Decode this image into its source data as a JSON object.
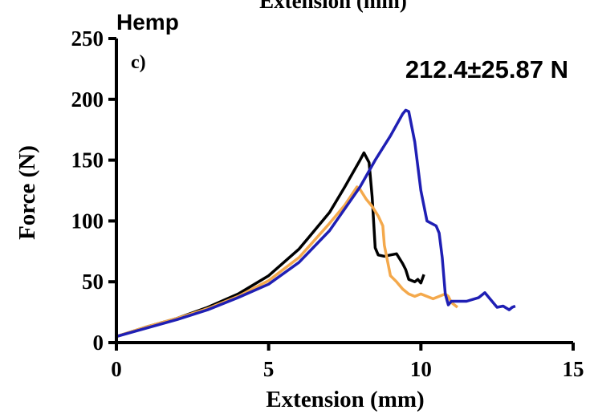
{
  "chart_data": {
    "type": "line",
    "top_label": "Extension (mm)",
    "title": "Hemp",
    "panel_label": "c)",
    "annotation": "212.4±25.87 N",
    "xlabel": "Extension (mm)",
    "ylabel": "Force (N)",
    "xlim": [
      0,
      15
    ],
    "ylim": [
      0,
      250
    ],
    "xticks": [
      0,
      5,
      10,
      15
    ],
    "yticks": [
      0,
      50,
      100,
      150,
      200,
      250
    ],
    "grid": false,
    "series": [
      {
        "color": "#000000",
        "points": [
          [
            0,
            5
          ],
          [
            0.5,
            9
          ],
          [
            1,
            13
          ],
          [
            2,
            20
          ],
          [
            3,
            29
          ],
          [
            4,
            40
          ],
          [
            5,
            55
          ],
          [
            6,
            77
          ],
          [
            7,
            107
          ],
          [
            7.5,
            128
          ],
          [
            8,
            150
          ],
          [
            8.13,
            156
          ],
          [
            8.3,
            148
          ],
          [
            8.4,
            120
          ],
          [
            8.5,
            78
          ],
          [
            8.6,
            72
          ],
          [
            8.8,
            71
          ],
          [
            9.0,
            72
          ],
          [
            9.2,
            73
          ],
          [
            9.4,
            65
          ],
          [
            9.5,
            60
          ],
          [
            9.6,
            52
          ],
          [
            9.8,
            50
          ],
          [
            9.9,
            52
          ],
          [
            10.0,
            49
          ],
          [
            10.1,
            56
          ]
        ]
      },
      {
        "color": "#F4A94C",
        "points": [
          [
            0,
            5
          ],
          [
            1,
            13
          ],
          [
            2,
            20
          ],
          [
            3,
            28
          ],
          [
            4,
            38
          ],
          [
            5,
            51
          ],
          [
            6,
            70
          ],
          [
            7,
            98
          ],
          [
            7.5,
            113
          ],
          [
            7.9,
            128
          ],
          [
            8.0,
            126
          ],
          [
            8.2,
            118
          ],
          [
            8.4,
            112
          ],
          [
            8.6,
            104
          ],
          [
            8.75,
            96
          ],
          [
            8.8,
            80
          ],
          [
            9.0,
            55
          ],
          [
            9.2,
            50
          ],
          [
            9.4,
            44
          ],
          [
            9.6,
            40
          ],
          [
            9.8,
            38
          ],
          [
            10.0,
            40
          ],
          [
            10.2,
            38
          ],
          [
            10.4,
            36
          ],
          [
            10.6,
            38
          ],
          [
            10.8,
            40
          ],
          [
            10.9,
            38
          ],
          [
            11.0,
            33
          ],
          [
            11.2,
            29
          ]
        ]
      },
      {
        "color": "#1F1FB4",
        "points": [
          [
            0,
            5
          ],
          [
            1,
            12
          ],
          [
            2,
            19
          ],
          [
            3,
            27
          ],
          [
            4,
            37
          ],
          [
            5,
            48
          ],
          [
            6,
            66
          ],
          [
            7,
            92
          ],
          [
            8,
            128
          ],
          [
            8.5,
            150
          ],
          [
            9.0,
            170
          ],
          [
            9.4,
            188
          ],
          [
            9.5,
            191
          ],
          [
            9.6,
            190
          ],
          [
            9.8,
            165
          ],
          [
            10.0,
            125
          ],
          [
            10.2,
            100
          ],
          [
            10.5,
            96
          ],
          [
            10.6,
            90
          ],
          [
            10.7,
            70
          ],
          [
            10.8,
            40
          ],
          [
            10.9,
            31
          ],
          [
            11.0,
            34
          ],
          [
            11.5,
            34
          ],
          [
            11.9,
            37
          ],
          [
            12.1,
            41
          ],
          [
            12.3,
            35
          ],
          [
            12.5,
            29
          ],
          [
            12.7,
            30
          ],
          [
            12.9,
            27
          ],
          [
            13.0,
            29
          ],
          [
            13.1,
            30
          ]
        ]
      }
    ]
  }
}
